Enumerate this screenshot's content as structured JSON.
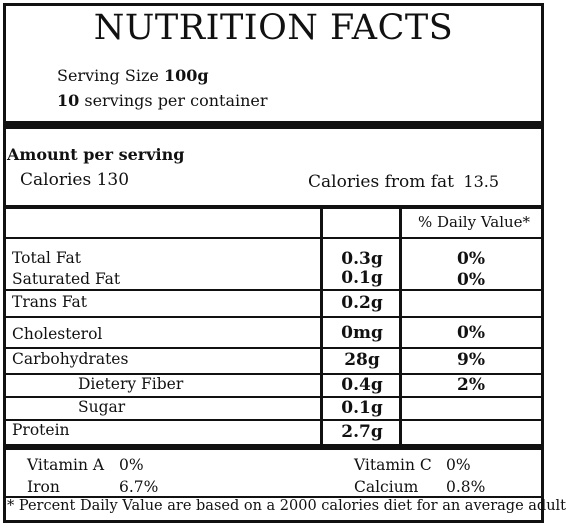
{
  "title": "NUTRITION FACTS",
  "serving": {
    "label": "Serving Size",
    "value": "100g"
  },
  "servings": {
    "count": "10",
    "label": "servings per container"
  },
  "amount_header": "Amount per serving",
  "calories": {
    "label": "Calories",
    "value": "130"
  },
  "calories_fat": {
    "label": "Calories from fat",
    "value": "13.5"
  },
  "dv_header": "% Daily Value*",
  "nutrients": [
    {
      "label": "Total Fat",
      "amount": "0.3g",
      "dv": "0%"
    },
    {
      "label": "Saturated Fat",
      "amount": "0.1g",
      "dv": "0%"
    },
    {
      "label": "Trans Fat",
      "amount": "0.2g",
      "dv": ""
    },
    {
      "label": "Cholesterol",
      "amount": "0mg",
      "dv": "0%"
    },
    {
      "label": "Carbohydrates",
      "amount": "28g",
      "dv": "9%"
    },
    {
      "label": "Dietery Fiber",
      "amount": "0.4g",
      "dv": "2%"
    },
    {
      "label": "Sugar",
      "amount": "0.1g",
      "dv": ""
    },
    {
      "label": "Protein",
      "amount": "2.7g",
      "dv": ""
    }
  ],
  "vitamins": {
    "vitamin_a": {
      "label": "Vitamin A",
      "value": "0%"
    },
    "vitamin_c": {
      "label": "Vitamin C",
      "value": "0%"
    },
    "iron": {
      "label": "Iron",
      "value": "6.7%"
    },
    "calcium": {
      "label": "Calcium",
      "value": "0.8%"
    }
  },
  "footnote": "* Percent Daily Value are based on a 2000 calories diet for an average adult"
}
